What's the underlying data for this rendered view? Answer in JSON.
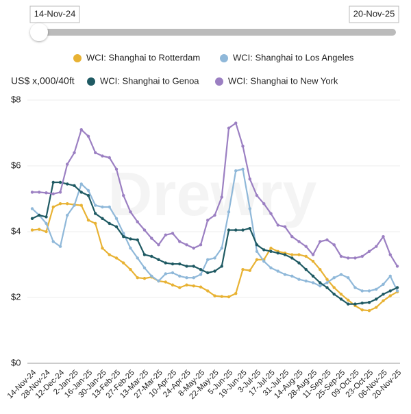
{
  "range_start": "14-Nov-24",
  "range_end": "20-Nov-25",
  "chart_data": {
    "type": "line",
    "ylabel": "US$ x,000/40ft",
    "watermark": "Drewry",
    "categories": [
      "14-Nov-24",
      null,
      "28-Nov-24",
      null,
      "12-Dec-24",
      null,
      "2-Jan-25",
      null,
      "16-Jan-25",
      null,
      "30-Jan-25",
      null,
      "13-Feb-25",
      null,
      "27-Feb-25",
      null,
      "13-Mar-25",
      null,
      "27-Mar-25",
      null,
      "10-Apr-25",
      null,
      "24-Apr-25",
      null,
      "8-May-25",
      null,
      "22-May-25",
      null,
      "5-Jun-25",
      null,
      "19-Jun-25",
      null,
      "3-Jul-25",
      null,
      "17-Jul-25",
      null,
      "31-Jul-25",
      null,
      "14-Aug-25",
      null,
      "28-Aug-25",
      null,
      "11-Sep-25",
      null,
      "25-Sep-25",
      null,
      "09-Oct-25",
      null,
      "23-Oct-25",
      null,
      "06-Nov-25",
      null,
      "20-Nov-25"
    ],
    "series": [
      {
        "name": "WCI: Shanghai to Rotterdam",
        "color": "#e8b233",
        "values": [
          4.05,
          4.07,
          4.0,
          4.75,
          4.85,
          4.85,
          4.82,
          4.8,
          4.35,
          4.25,
          3.5,
          3.3,
          3.2,
          3.05,
          2.85,
          2.6,
          2.58,
          2.62,
          2.5,
          2.47,
          2.38,
          2.3,
          2.38,
          2.35,
          2.32,
          2.2,
          2.05,
          2.03,
          2.02,
          2.12,
          2.85,
          2.82,
          3.15,
          3.15,
          3.5,
          3.4,
          3.35,
          3.3,
          3.3,
          3.25,
          3.1,
          2.85,
          2.55,
          2.3,
          2.1,
          1.92,
          1.75,
          1.62,
          1.6,
          1.7,
          1.9,
          2.05,
          2.17
        ]
      },
      {
        "name": "WCI: Shanghai to Los Angeles",
        "color": "#8fb8d9",
        "values": [
          4.7,
          4.5,
          4.25,
          3.7,
          3.55,
          4.5,
          4.8,
          5.45,
          5.25,
          4.8,
          4.75,
          4.75,
          4.4,
          3.95,
          3.5,
          3.2,
          2.9,
          2.65,
          2.5,
          2.72,
          2.75,
          2.65,
          2.6,
          2.6,
          2.7,
          3.15,
          3.2,
          3.5,
          4.6,
          5.85,
          5.9,
          4.7,
          3.4,
          3.1,
          2.9,
          2.8,
          2.7,
          2.65,
          2.55,
          2.5,
          2.45,
          2.35,
          2.45,
          2.6,
          2.7,
          2.6,
          2.3,
          2.2,
          2.2,
          2.25,
          2.4,
          2.65,
          2.2
        ]
      },
      {
        "name": "WCI: Shanghai to Genoa",
        "color": "#1f5a63",
        "values": [
          4.4,
          4.5,
          4.45,
          5.5,
          5.5,
          5.45,
          5.4,
          5.2,
          5.1,
          4.55,
          4.4,
          4.25,
          4.15,
          3.85,
          3.78,
          3.75,
          3.3,
          3.25,
          3.15,
          3.05,
          3.02,
          3.02,
          2.95,
          2.95,
          2.85,
          2.75,
          2.8,
          2.95,
          4.05,
          4.05,
          4.05,
          4.1,
          3.6,
          3.45,
          3.4,
          3.35,
          3.3,
          3.2,
          3.05,
          2.85,
          2.65,
          2.45,
          2.3,
          2.1,
          1.95,
          1.8,
          1.8,
          1.83,
          1.85,
          1.95,
          2.1,
          2.2,
          2.3
        ]
      },
      {
        "name": "WCI: Shanghai to New York",
        "color": "#9b7fc2",
        "values": [
          5.2,
          5.2,
          5.18,
          5.15,
          5.2,
          6.05,
          6.4,
          7.1,
          6.9,
          6.4,
          6.3,
          6.25,
          5.9,
          5.1,
          4.6,
          4.3,
          4.05,
          3.8,
          3.6,
          3.9,
          3.95,
          3.7,
          3.6,
          3.5,
          3.6,
          4.35,
          4.5,
          5.05,
          7.15,
          7.3,
          6.6,
          5.6,
          5.1,
          4.85,
          4.55,
          4.2,
          4.15,
          3.85,
          3.7,
          3.55,
          3.3,
          3.7,
          3.75,
          3.6,
          3.25,
          3.2,
          3.2,
          3.25,
          3.4,
          3.55,
          3.85,
          3.3,
          2.95
        ]
      }
    ],
    "ylim": [
      0,
      8
    ],
    "yticks": [
      {
        "value": 0,
        "label": "$0"
      },
      {
        "value": 2,
        "label": "$2"
      },
      {
        "value": 4,
        "label": "$4"
      },
      {
        "value": 6,
        "label": "$6"
      },
      {
        "value": 8,
        "label": "$8"
      }
    ],
    "grid": true
  }
}
